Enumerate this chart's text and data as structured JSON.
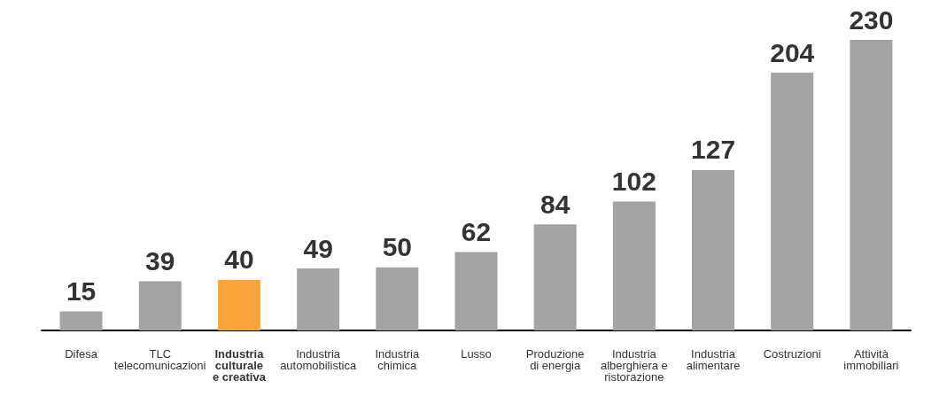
{
  "chart_data": {
    "type": "bar",
    "categories": [
      "Difesa",
      "TLC\ntelecomunicazioni",
      "Industria\nculturale\ne creativa",
      "Industria\nautomobilistica",
      "Industria\nchimica",
      "Lusso",
      "Produzione\ndi energia",
      "Industria\nalberghiera e\nristorazione",
      "Industria\nalimentare",
      "Costruzioni",
      "Attività\nimmobiliari"
    ],
    "values": [
      15,
      39,
      40,
      49,
      50,
      62,
      84,
      102,
      127,
      204,
      230
    ],
    "colors": [
      "#a3a3a3",
      "#a3a3a3",
      "#f9a53c",
      "#a3a3a3",
      "#a3a3a3",
      "#a3a3a3",
      "#a3a3a3",
      "#a3a3a3",
      "#a3a3a3",
      "#a3a3a3",
      "#a3a3a3"
    ],
    "data_labels": true
  }
}
